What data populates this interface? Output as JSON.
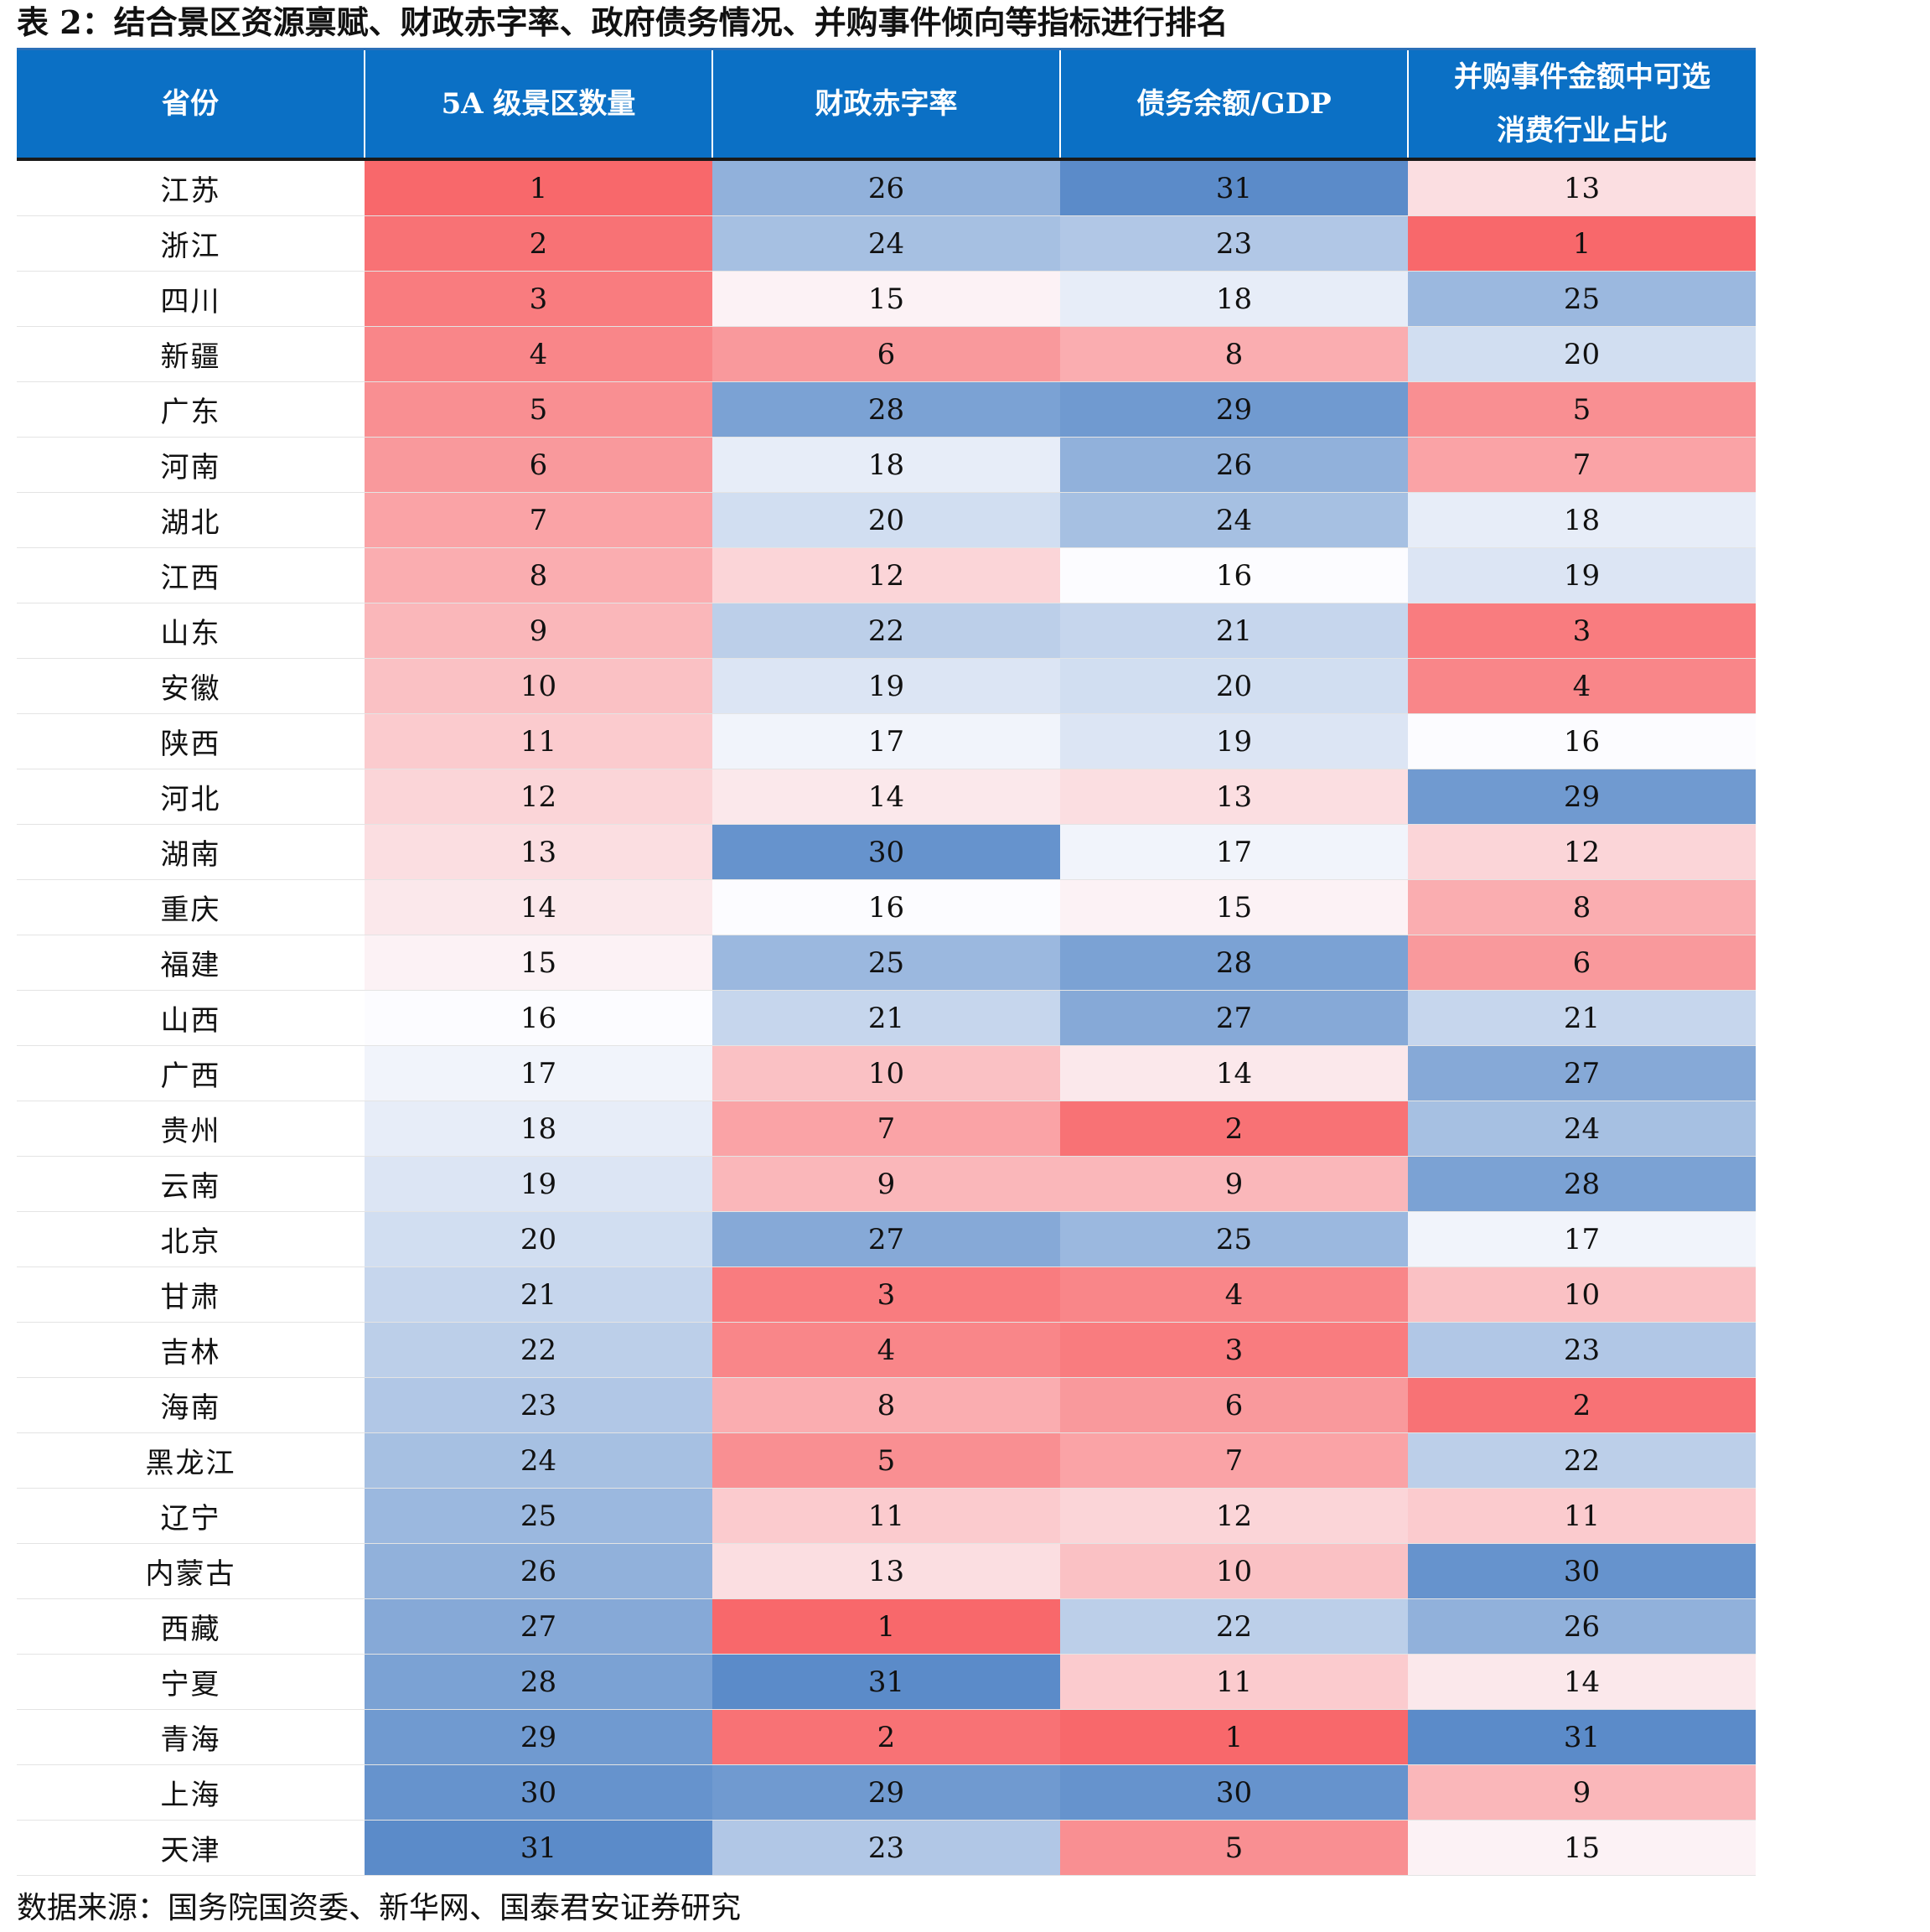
{
  "title": "表 2：结合景区资源禀赋、财政赤字率、政府债务情况、并购事件倾向等指标进行排名",
  "headers": [
    "省份",
    "5A 级景区数量",
    "财政赤字率",
    "债务余额/GDP",
    "并购事件金额中可选消费行业占比"
  ],
  "header_lines": {
    "col5_line1": "并购事件金额中可选",
    "col5_line2": "消费行业占比"
  },
  "colors": {
    "header_bg": "#0b70c5",
    "rank_high": "#f8686b",
    "rank_mid": "#fcfcff",
    "rank_low": "#5b8bc9"
  },
  "rows": [
    {
      "province": "江苏",
      "values": [
        1,
        26,
        31,
        13
      ]
    },
    {
      "province": "浙江",
      "values": [
        2,
        24,
        23,
        1
      ]
    },
    {
      "province": "四川",
      "values": [
        3,
        15,
        18,
        25
      ]
    },
    {
      "province": "新疆",
      "values": [
        4,
        6,
        8,
        20
      ]
    },
    {
      "province": "广东",
      "values": [
        5,
        28,
        29,
        5
      ]
    },
    {
      "province": "河南",
      "values": [
        6,
        18,
        26,
        7
      ]
    },
    {
      "province": "湖北",
      "values": [
        7,
        20,
        24,
        18
      ]
    },
    {
      "province": "江西",
      "values": [
        8,
        12,
        16,
        19
      ]
    },
    {
      "province": "山东",
      "values": [
        9,
        22,
        21,
        3
      ]
    },
    {
      "province": "安徽",
      "values": [
        10,
        19,
        20,
        4
      ]
    },
    {
      "province": "陕西",
      "values": [
        11,
        17,
        19,
        16
      ]
    },
    {
      "province": "河北",
      "values": [
        12,
        14,
        13,
        29
      ]
    },
    {
      "province": "湖南",
      "values": [
        13,
        30,
        17,
        12
      ]
    },
    {
      "province": "重庆",
      "values": [
        14,
        16,
        15,
        8
      ]
    },
    {
      "province": "福建",
      "values": [
        15,
        25,
        28,
        6
      ]
    },
    {
      "province": "山西",
      "values": [
        16,
        21,
        27,
        21
      ]
    },
    {
      "province": "广西",
      "values": [
        17,
        10,
        14,
        27
      ]
    },
    {
      "province": "贵州",
      "values": [
        18,
        7,
        2,
        24
      ]
    },
    {
      "province": "云南",
      "values": [
        19,
        9,
        9,
        28
      ]
    },
    {
      "province": "北京",
      "values": [
        20,
        27,
        25,
        17
      ]
    },
    {
      "province": "甘肃",
      "values": [
        21,
        3,
        4,
        10
      ]
    },
    {
      "province": "吉林",
      "values": [
        22,
        4,
        3,
        23
      ]
    },
    {
      "province": "海南",
      "values": [
        23,
        8,
        6,
        2
      ]
    },
    {
      "province": "黑龙江",
      "values": [
        24,
        5,
        7,
        22
      ]
    },
    {
      "province": "辽宁",
      "values": [
        25,
        11,
        12,
        11
      ]
    },
    {
      "province": "内蒙古",
      "values": [
        26,
        13,
        10,
        30
      ]
    },
    {
      "province": "西藏",
      "values": [
        27,
        1,
        22,
        26
      ]
    },
    {
      "province": "宁夏",
      "values": [
        28,
        31,
        11,
        14
      ]
    },
    {
      "province": "青海",
      "values": [
        29,
        2,
        1,
        31
      ]
    },
    {
      "province": "上海",
      "values": [
        30,
        29,
        30,
        9
      ]
    },
    {
      "province": "天津",
      "values": [
        31,
        23,
        5,
        15
      ]
    }
  ],
  "source": "数据来源：国务院国资委、新华网、国泰君安证券研究"
}
